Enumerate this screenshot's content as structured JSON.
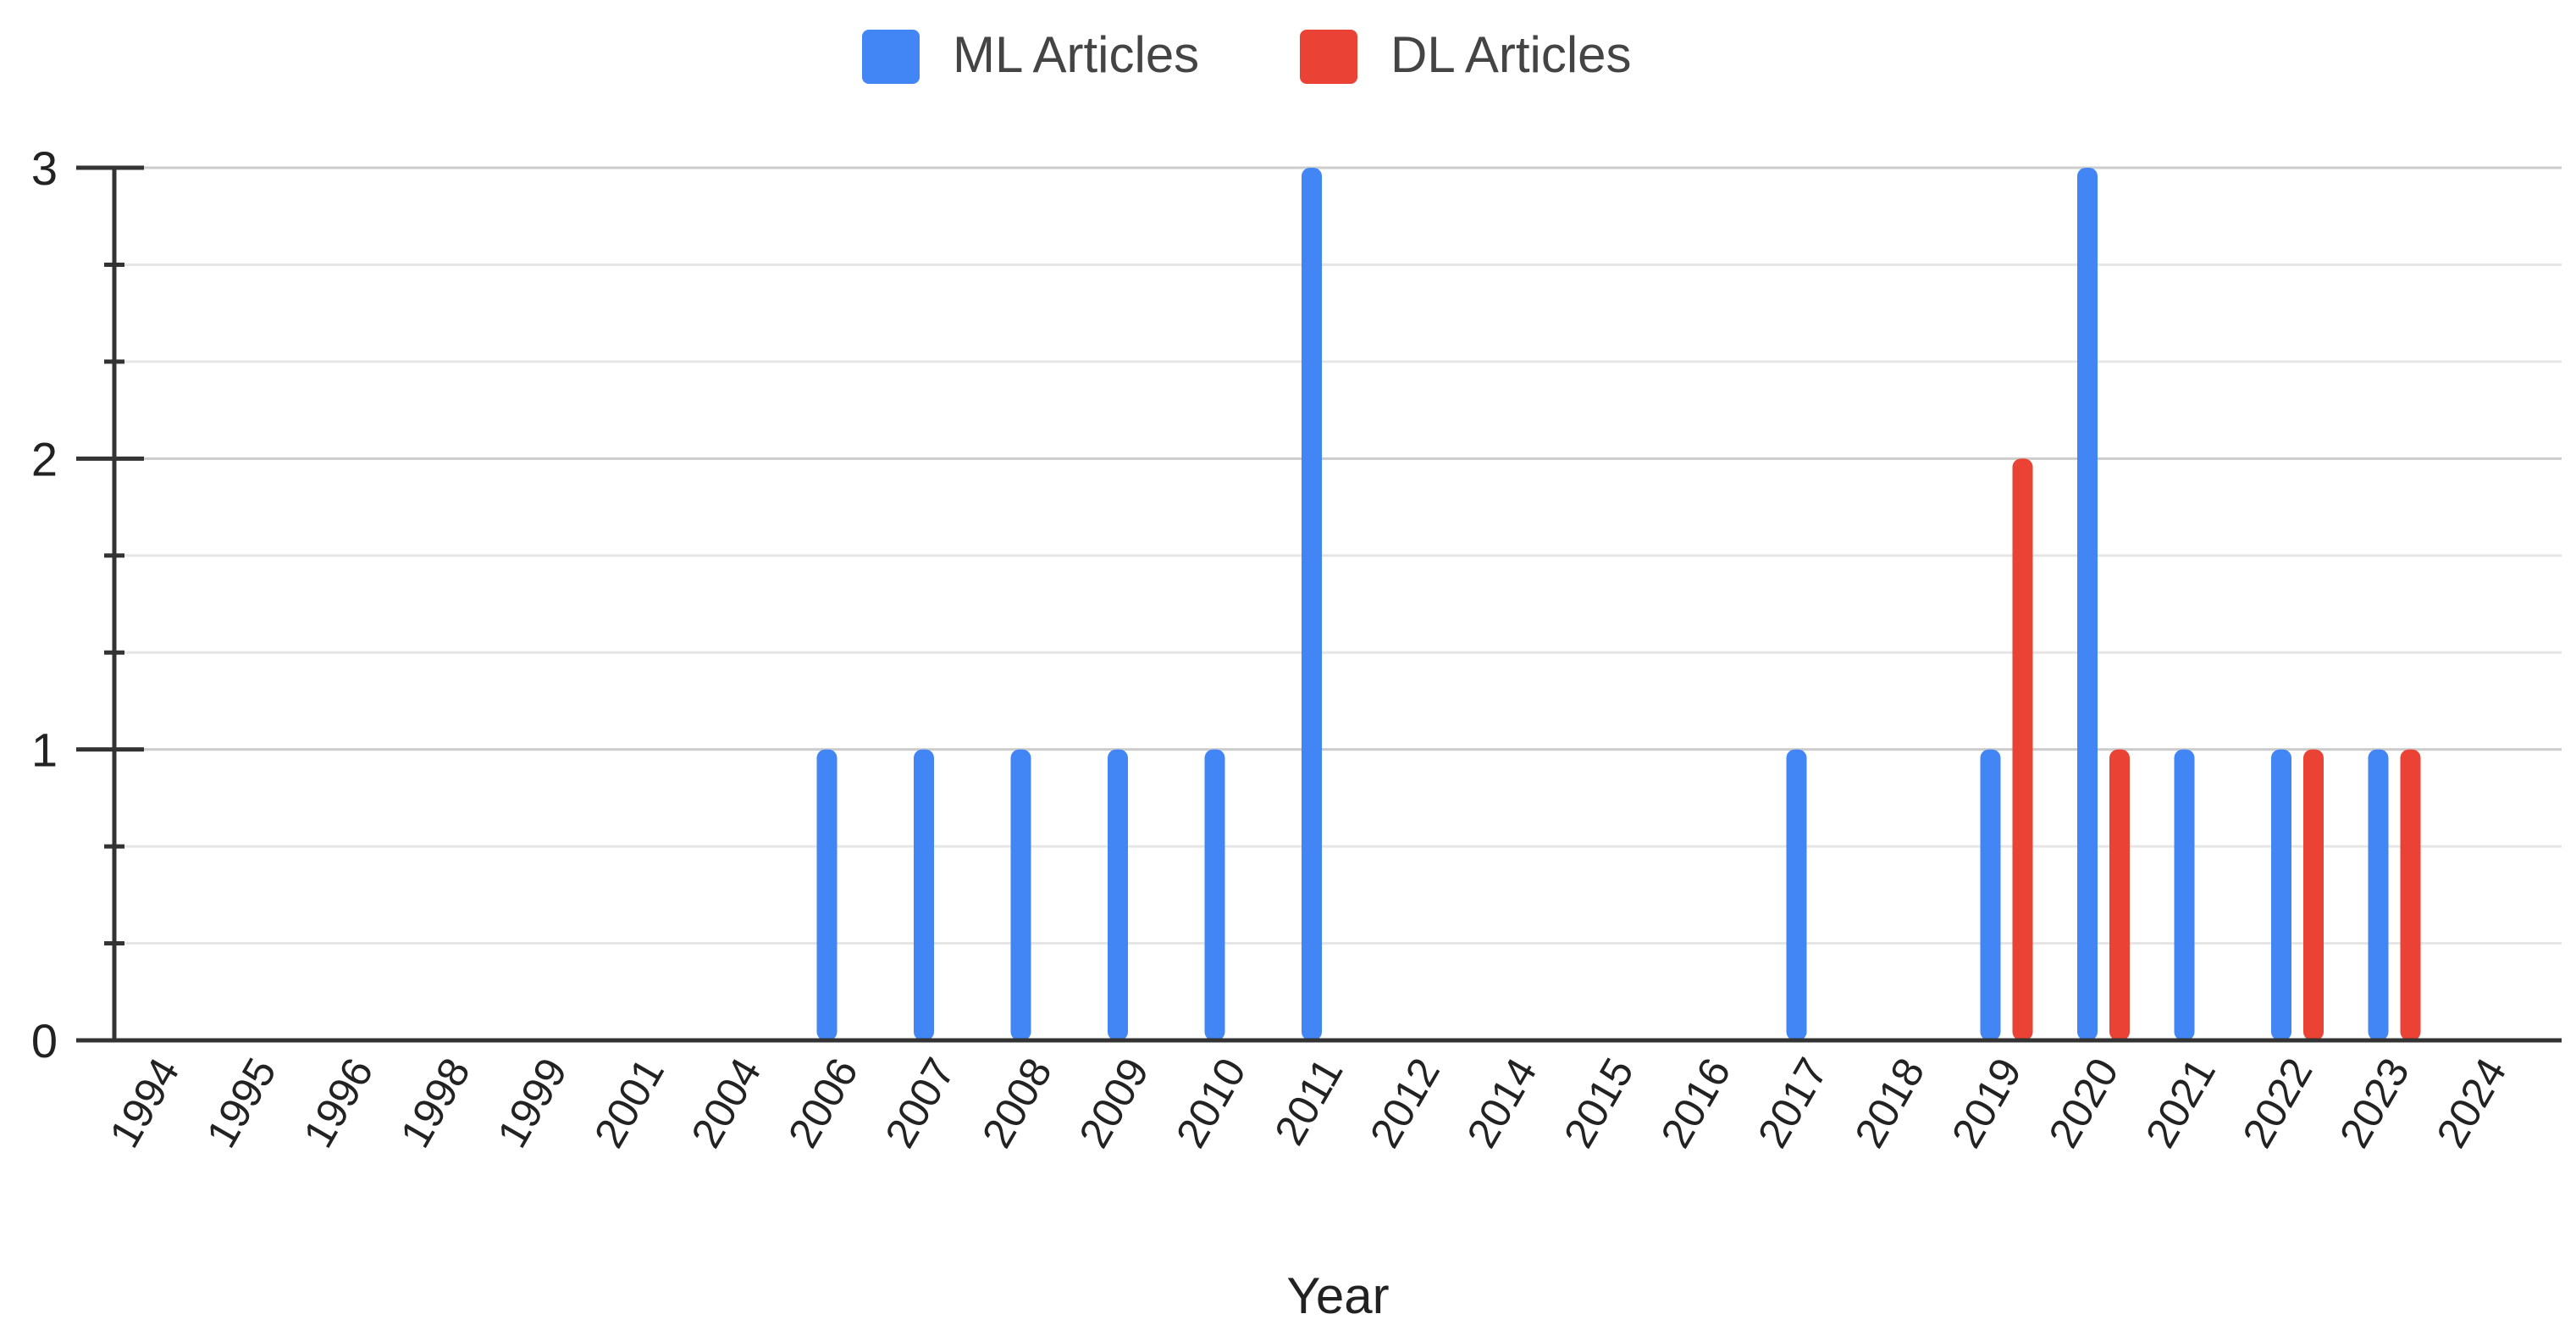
{
  "chart_data": {
    "type": "bar",
    "title": "",
    "xlabel": "Year",
    "ylabel": "",
    "ylim": [
      0,
      3
    ],
    "yticks": [
      "0",
      "1",
      "2",
      "3"
    ],
    "grid": true,
    "legend_position": "top-center",
    "categories": [
      "1994",
      "1995",
      "1996",
      "1998",
      "1999",
      "2001",
      "2004",
      "2006",
      "2007",
      "2008",
      "2009",
      "2010",
      "2011",
      "2012",
      "2014",
      "2015",
      "2016",
      "2017",
      "2018",
      "2019",
      "2020",
      "2021",
      "2022",
      "2023",
      "2024"
    ],
    "series": [
      {
        "name": "ML Articles",
        "color": "#4285F4",
        "values": [
          0,
          0,
          0,
          0,
          0,
          0,
          0,
          1,
          1,
          1,
          1,
          1,
          3,
          0,
          0,
          0,
          0,
          1,
          0,
          1,
          3,
          1,
          1,
          1,
          0
        ]
      },
      {
        "name": "DL Articles",
        "color": "#EA4335",
        "values": [
          0,
          0,
          0,
          0,
          0,
          0,
          0,
          0,
          0,
          0,
          0,
          0,
          0,
          0,
          0,
          0,
          0,
          0,
          0,
          2,
          1,
          0,
          1,
          1,
          0
        ]
      }
    ]
  }
}
